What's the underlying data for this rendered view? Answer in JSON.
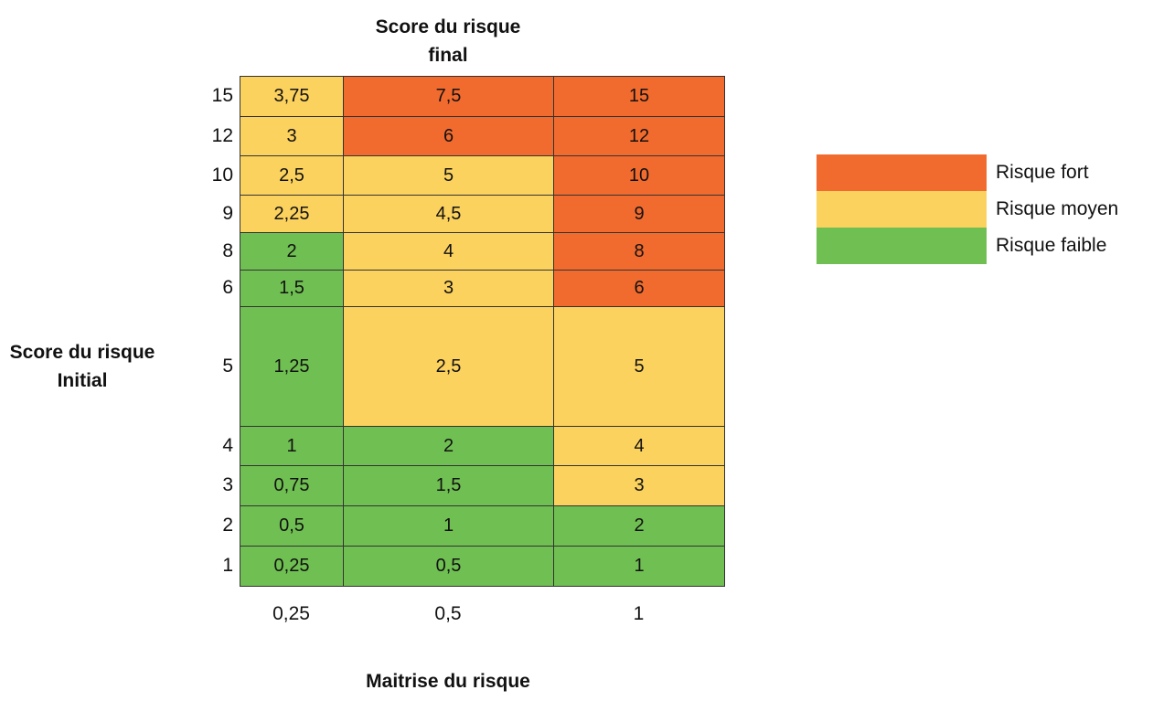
{
  "chart_data": {
    "type": "heatmap",
    "title": "Score du risque final",
    "ylabel": "Score du risque Initial",
    "xlabel": "Maitrise du risque",
    "x": [
      "0,25",
      "0,5",
      "1"
    ],
    "y": [
      "15",
      "12",
      "10",
      "9",
      "8",
      "6",
      "5",
      "4",
      "3",
      "2",
      "1"
    ],
    "values": [
      [
        "3,75",
        "7,5",
        "15"
      ],
      [
        "3",
        "6",
        "12"
      ],
      [
        "2,5",
        "5",
        "10"
      ],
      [
        "2,25",
        "4,5",
        "9"
      ],
      [
        "2",
        "4",
        "8"
      ],
      [
        "1,5",
        "3",
        "6"
      ],
      [
        "1,25",
        "2,5",
        "5"
      ],
      [
        "1",
        "2",
        "4"
      ],
      [
        "0,75",
        "1,5",
        "3"
      ],
      [
        "0,5",
        "1",
        "2"
      ],
      [
        "0,25",
        "0,5",
        "1"
      ]
    ],
    "levels": [
      [
        "moyen",
        "fort",
        "fort"
      ],
      [
        "moyen",
        "fort",
        "fort"
      ],
      [
        "moyen",
        "moyen",
        "fort"
      ],
      [
        "moyen",
        "moyen",
        "fort"
      ],
      [
        "faible",
        "moyen",
        "fort"
      ],
      [
        "faible",
        "moyen",
        "fort"
      ],
      [
        "faible",
        "moyen",
        "moyen"
      ],
      [
        "faible",
        "faible",
        "moyen"
      ],
      [
        "faible",
        "faible",
        "moyen"
      ],
      [
        "faible",
        "faible",
        "faible"
      ],
      [
        "faible",
        "faible",
        "faible"
      ]
    ],
    "legend": [
      {
        "key": "fort",
        "label": "Risque fort",
        "color": "#f26b2e"
      },
      {
        "key": "moyen",
        "label": "Risque moyen",
        "color": "#fcd25e"
      },
      {
        "key": "faible",
        "label": "Risque faible",
        "color": "#70bf52"
      }
    ],
    "legend_position": "right"
  }
}
